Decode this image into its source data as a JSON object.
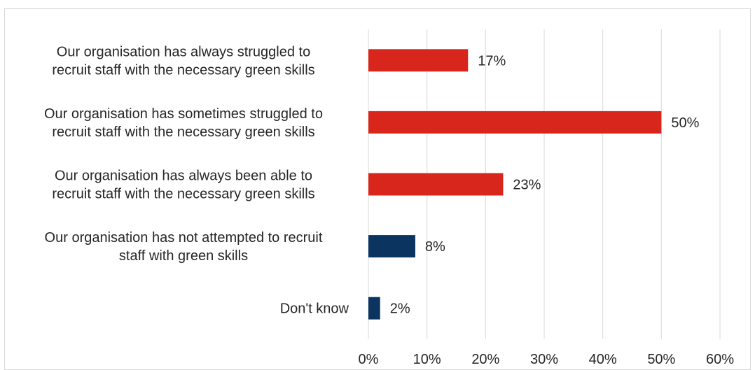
{
  "chart_data": {
    "type": "bar",
    "orientation": "horizontal",
    "categories": [
      [
        "Our organisation has always struggled to",
        "recruit staff with the necessary green skills"
      ],
      [
        "Our organisation has sometimes struggled to",
        "recruit staff with the necessary green skills"
      ],
      [
        "Our organisation has always been able to",
        "recruit staff with the necessary green skills"
      ],
      [
        "Our organisation has not attempted to recruit",
        "staff with green skills"
      ],
      [
        "Don't know"
      ]
    ],
    "values": [
      17,
      50,
      23,
      8,
      2
    ],
    "data_labels": [
      "17%",
      "50%",
      "23%",
      "8%",
      "2%"
    ],
    "bar_colors": [
      "#d9261c",
      "#d9261c",
      "#d9261c",
      "#0b3461",
      "#0b3461"
    ],
    "x_ticks": [
      0,
      10,
      20,
      30,
      40,
      50,
      60
    ],
    "x_tick_labels": [
      "0%",
      "10%",
      "20%",
      "30%",
      "40%",
      "50%",
      "60%"
    ],
    "xlim": [
      0,
      60
    ],
    "grid": "vertical",
    "legend": "none",
    "title": "",
    "xlabel": "",
    "ylabel": ""
  }
}
